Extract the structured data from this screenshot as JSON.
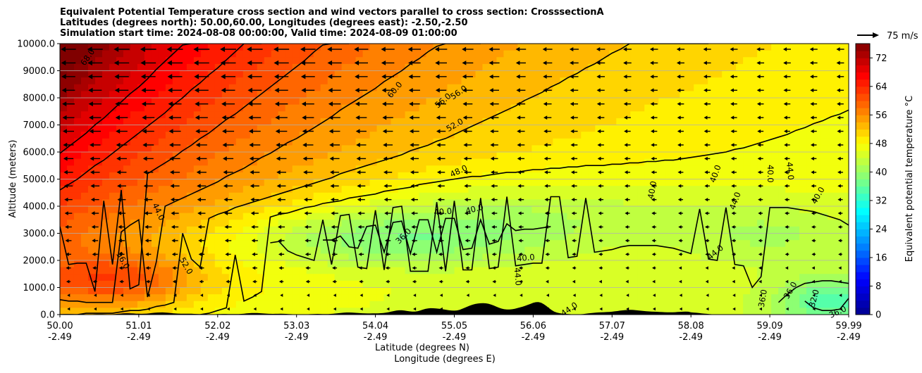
{
  "chart_data": {
    "type": "heatmap",
    "title_lines": [
      "Equivalent Potential Temperature cross section and wind vectors parallel to cross section: CrosssectionA",
      "Latitudes (degrees north): 50.00,60.00, Longitudes (degrees east): -2.50,-2.50",
      "Simulation start time: 2024-08-08 00:00:00, Valid time: 2024-08-09 01:00:00"
    ],
    "ylabel": "Altitude (meters)",
    "xlabel_lines": [
      "Latitude (degrees N)",
      "Longitude (degrees E)"
    ],
    "ylim": [
      0,
      10000
    ],
    "y_ticks": [
      "0.0",
      "1000.0",
      "2000.0",
      "3000.0",
      "4000.0",
      "5000.0",
      "6000.0",
      "7000.0",
      "8000.0",
      "9000.0",
      "10000.0"
    ],
    "x_ticks": [
      {
        "lat": "50.00",
        "lon": "-2.49"
      },
      {
        "lat": "51.01",
        "lon": "-2.49"
      },
      {
        "lat": "52.02",
        "lon": "-2.49"
      },
      {
        "lat": "53.03",
        "lon": "-2.49"
      },
      {
        "lat": "54.04",
        "lon": "-2.49"
      },
      {
        "lat": "55.05",
        "lon": "-2.49"
      },
      {
        "lat": "56.06",
        "lon": "-2.49"
      },
      {
        "lat": "57.07",
        "lon": "-2.49"
      },
      {
        "lat": "58.08",
        "lon": "-2.49"
      },
      {
        "lat": "59.09",
        "lon": "-2.49"
      },
      {
        "lat": "59.99",
        "lon": "-2.49"
      }
    ],
    "colorbar": {
      "label": "Equivalent potential temperature $^\\circ$C",
      "label_display": "Equivalent potential temperature °C",
      "min": 0,
      "max": 76,
      "ticks": [
        "0",
        "8",
        "16",
        "24",
        "32",
        "40",
        "48",
        "56",
        "64",
        "72"
      ],
      "stops": [
        {
          "v": 0,
          "c": "#00008f"
        },
        {
          "v": 10,
          "c": "#0000ff"
        },
        {
          "v": 19,
          "c": "#0080ff"
        },
        {
          "v": 29,
          "c": "#00ffff"
        },
        {
          "v": 38,
          "c": "#80ff80"
        },
        {
          "v": 48,
          "c": "#ffff00"
        },
        {
          "v": 57,
          "c": "#ff8000"
        },
        {
          "v": 67,
          "c": "#ff0000"
        },
        {
          "v": 76,
          "c": "#800000"
        }
      ]
    },
    "quiver_key": {
      "label": "75 m/s"
    },
    "contour_labels": [
      {
        "text": "68.0",
        "lat": 50.35,
        "alt": 9500,
        "rot": -55
      },
      {
        "text": "60.0",
        "lat": 54.24,
        "alt": 8300,
        "rot": -50
      },
      {
        "text": "56.0",
        "lat": 54.85,
        "alt": 7900,
        "rot": -40
      },
      {
        "text": "56.0",
        "lat": 55.05,
        "alt": 8200,
        "rot": -35
      },
      {
        "text": "52.0",
        "lat": 55.0,
        "alt": 7000,
        "rot": -30
      },
      {
        "text": "48.0",
        "lat": 55.05,
        "alt": 5300,
        "rot": -25
      },
      {
        "text": "40.0",
        "lat": 54.85,
        "alt": 3800,
        "rot": -5
      },
      {
        "text": "40.0",
        "lat": 55.25,
        "alt": 3900,
        "rot": -15
      },
      {
        "text": "36.0",
        "lat": 54.35,
        "alt": 2900,
        "rot": -45
      },
      {
        "text": "44.0",
        "lat": 51.25,
        "alt": 3800,
        "rot": 65
      },
      {
        "text": "56.0",
        "lat": 50.8,
        "alt": 2000,
        "rot": 60
      },
      {
        "text": "52.0",
        "lat": 51.6,
        "alt": 1800,
        "rot": 60
      },
      {
        "text": "40.0",
        "lat": 55.9,
        "alt": 2100,
        "rot": -5
      },
      {
        "text": "44.0",
        "lat": 55.8,
        "alt": 1400,
        "rot": 85
      },
      {
        "text": "44.0",
        "lat": 56.45,
        "alt": 200,
        "rot": -35
      },
      {
        "text": "40.0",
        "lat": 57.5,
        "alt": 4600,
        "rot": -80
      },
      {
        "text": "40.0",
        "lat": 58.3,
        "alt": 5200,
        "rot": -70
      },
      {
        "text": "44.0",
        "lat": 58.55,
        "alt": 4200,
        "rot": -70
      },
      {
        "text": "44.0",
        "lat": 58.3,
        "alt": 2300,
        "rot": -40
      },
      {
        "text": "40.0",
        "lat": 59.0,
        "alt": 5200,
        "rot": 90
      },
      {
        "text": "44.0",
        "lat": 59.25,
        "alt": 5300,
        "rot": 85
      },
      {
        "text": "40.0",
        "lat": 59.6,
        "alt": 4400,
        "rot": -60
      },
      {
        "text": "36.0",
        "lat": 58.9,
        "alt": 600,
        "rot": -80
      },
      {
        "text": "36.0",
        "lat": 59.25,
        "alt": 900,
        "rot": -60
      },
      {
        "text": "32.0",
        "lat": 59.55,
        "alt": 600,
        "rot": -75
      },
      {
        "text": "36.0",
        "lat": 59.85,
        "alt": 100,
        "rot": -25
      }
    ]
  },
  "colors": {
    "terrain": "#000000",
    "contour": "#000000",
    "grid": "#b0b0b0"
  }
}
